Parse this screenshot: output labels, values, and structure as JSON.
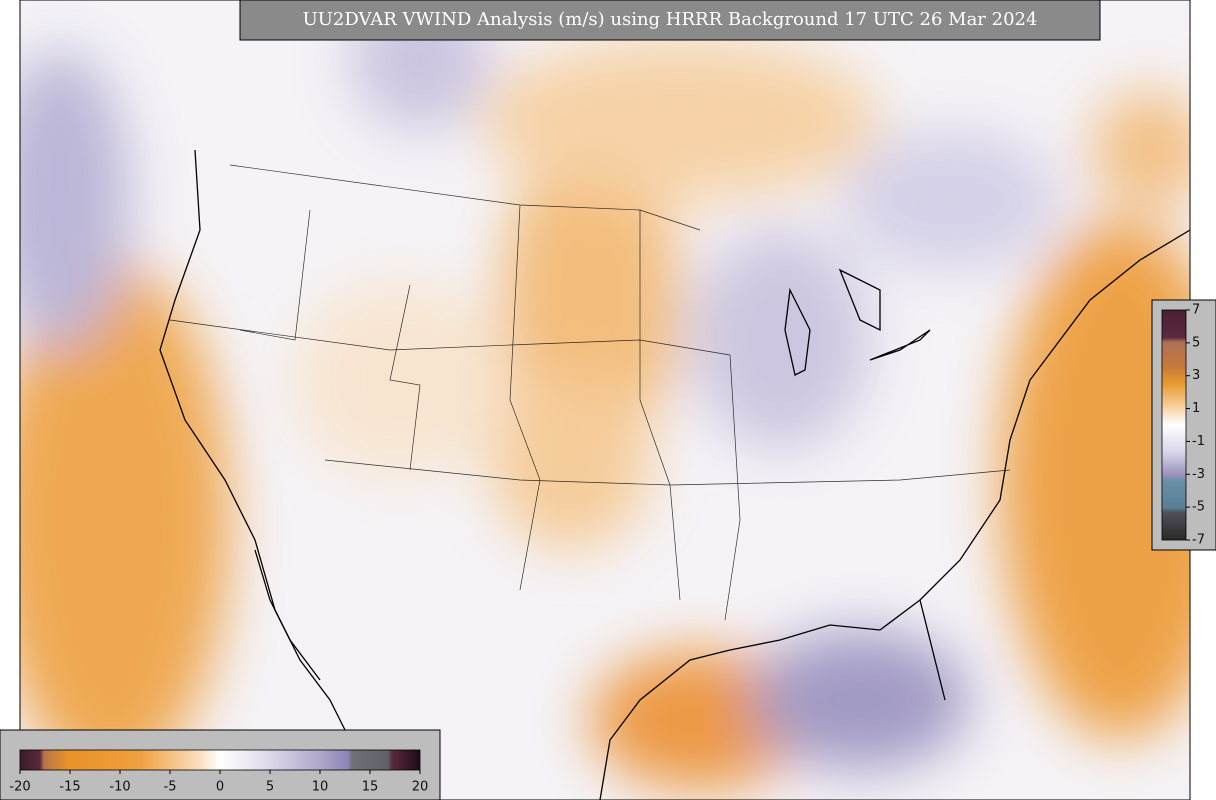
{
  "title": "UU2DVAR VWIND Analysis (m/s) using HRRR Background 17 UTC 26 Mar 2024",
  "colorbars": {
    "horizontal": {
      "ticks": [
        -20,
        -15,
        -10,
        -5,
        0,
        5,
        10,
        15,
        20
      ]
    },
    "vertical": {
      "ticks": [
        7,
        5,
        3,
        1,
        -1,
        -3,
        -5,
        -7
      ]
    }
  }
}
